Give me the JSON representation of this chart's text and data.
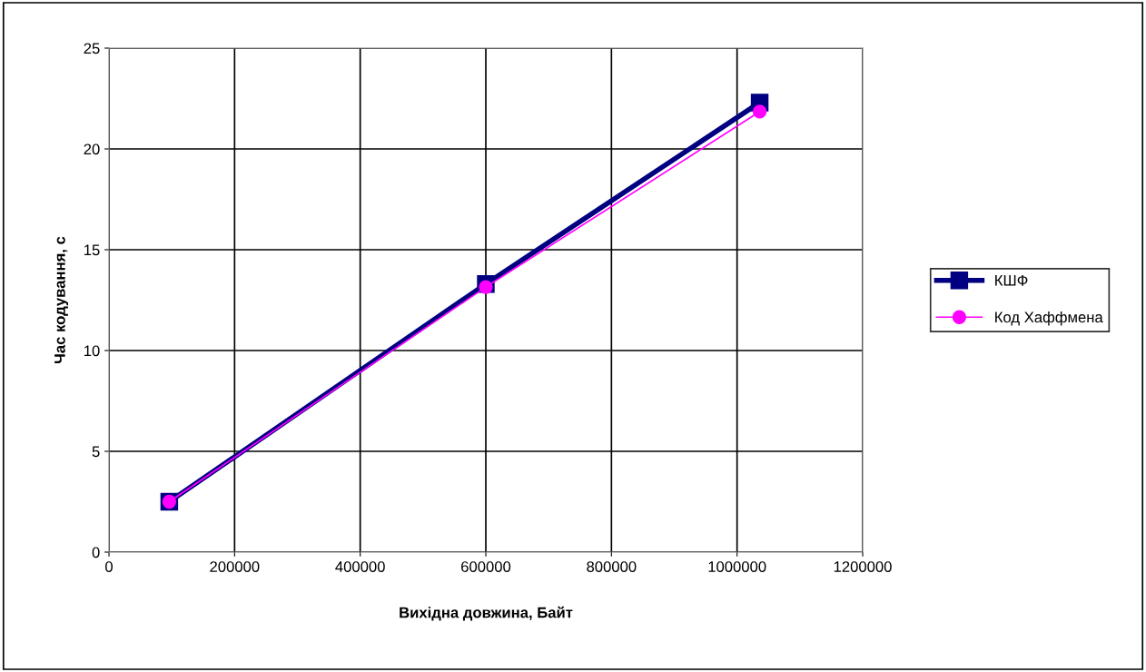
{
  "chart_data": {
    "type": "line",
    "xlabel": "Вихідна довжина, Байт",
    "ylabel": "Час кодування, с",
    "xlim": [
      0,
      1200000
    ],
    "xticks": [
      0,
      200000,
      400000,
      600000,
      800000,
      1000000,
      1200000
    ],
    "ylim": [
      0,
      25
    ],
    "yticks": [
      0,
      5,
      10,
      15,
      20,
      25
    ],
    "grid": true,
    "legend": "right",
    "series": [
      {
        "name": "КШФ",
        "color": "#000080",
        "marker": "square",
        "x": [
          96000,
          600000,
          1036000
        ],
        "values": [
          2.5,
          13.3,
          22.3
        ]
      },
      {
        "name": "Код Хаффмена",
        "color": "#ff00ff",
        "marker": "circle",
        "x": [
          96000,
          600000,
          1036000
        ],
        "values": [
          2.5,
          13.15,
          21.85
        ]
      }
    ]
  }
}
